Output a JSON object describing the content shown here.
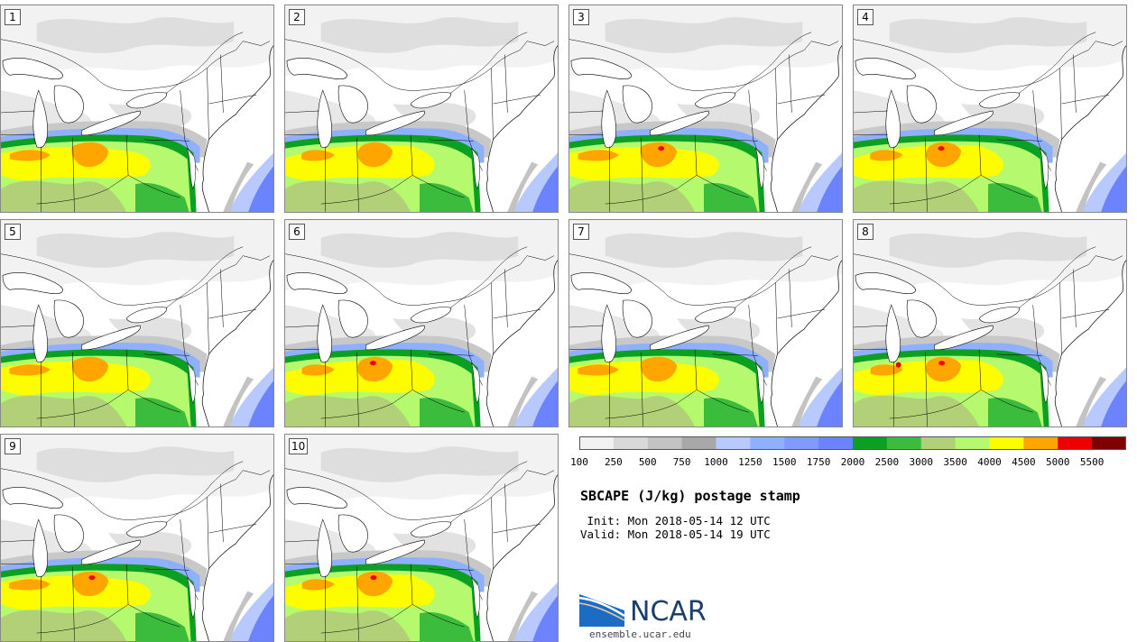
{
  "title": "SBCAPE (J/kg) postage stamp",
  "init": " Init: Mon 2018-05-14 12 UTC",
  "valid": "Valid: Mon 2018-05-14 19 UTC",
  "site": "ensemble.ucar.edu",
  "logo_text": "NCAR",
  "panels": [
    "1",
    "2",
    "3",
    "4",
    "5",
    "6",
    "7",
    "8",
    "9",
    "10"
  ],
  "colorbar": {
    "labels": [
      "100",
      "250",
      "500",
      "750",
      "1000",
      "1250",
      "1500",
      "1750",
      "2000",
      "2500",
      "3000",
      "3500",
      "4000",
      "4500",
      "5000",
      "5500"
    ],
    "colors": [
      "#f2f2f2",
      "#d9d9d9",
      "#c3c3c3",
      "#a8a8a8",
      "#b7c9ff",
      "#8fb0ff",
      "#7f9bff",
      "#6b83ff",
      "#0ca023",
      "#3cbc3c",
      "#b2d077",
      "#b4f96e",
      "#fdfd00",
      "#ffa500",
      "#ed0000",
      "#7e0000"
    ]
  },
  "colors": {
    "border": "#888888",
    "ncar_blue": "#1b3f6c"
  }
}
